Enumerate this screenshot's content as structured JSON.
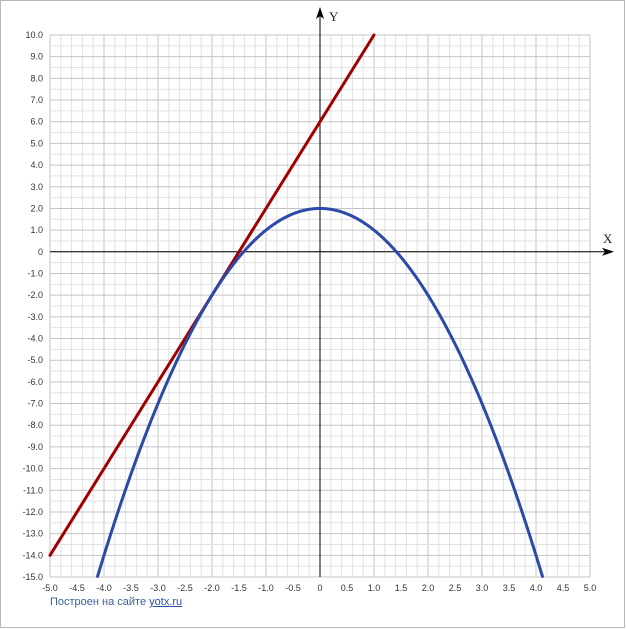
{
  "chart_data": {
    "type": "line",
    "xlabel": "X",
    "ylabel": "Y",
    "xlim": [
      -5,
      5
    ],
    "ylim": [
      -15,
      10
    ],
    "x_tick_labels": [
      "-5.0",
      "-4.5",
      "-4.0",
      "-3.5",
      "-3.0",
      "-2.5",
      "-2.0",
      "-1.5",
      "-1.0",
      "-0.5",
      "0",
      "0.5",
      "1.0",
      "1.5",
      "2.0",
      "2.5",
      "3.0",
      "3.5",
      "4.0",
      "4.5",
      "5.0"
    ],
    "y_tick_labels": [
      "10.0",
      "9.0",
      "8.0",
      "7.0",
      "6.0",
      "5.0",
      "4.0",
      "3.0",
      "2.0",
      "1.0",
      "0",
      "-1.0",
      "-2.0",
      "-3.0",
      "-4.0",
      "-5.0",
      "-6.0",
      "-7.0",
      "-8.0",
      "-9.0",
      "-10.0",
      "-11.0",
      "-12.0",
      "-13.0",
      "-14.0",
      "-15.0"
    ],
    "grid": true,
    "series": [
      {
        "color": "#a00000",
        "x": [
          -5.0,
          1.0
        ],
        "y": [
          -14.0,
          10.0
        ]
      },
      {
        "color": "#2a49a8",
        "x": [
          -4.12,
          -4.0,
          -3.5,
          -3.0,
          -2.5,
          -2.0,
          -1.5,
          -1.0,
          -0.5,
          0.0,
          0.5,
          1.0,
          1.5,
          2.0,
          2.5,
          3.0,
          3.5,
          4.0,
          4.12
        ],
        "y": [
          -14.97,
          -14.0,
          -10.25,
          -7.0,
          -4.25,
          -2.0,
          -0.25,
          1.0,
          1.75,
          2.0,
          1.75,
          1.0,
          -0.25,
          -2.0,
          -4.25,
          -7.0,
          -10.25,
          -14.0,
          -14.97
        ]
      }
    ]
  },
  "footer": {
    "text": "Построен на сайте",
    "link": "yotx.ru"
  }
}
